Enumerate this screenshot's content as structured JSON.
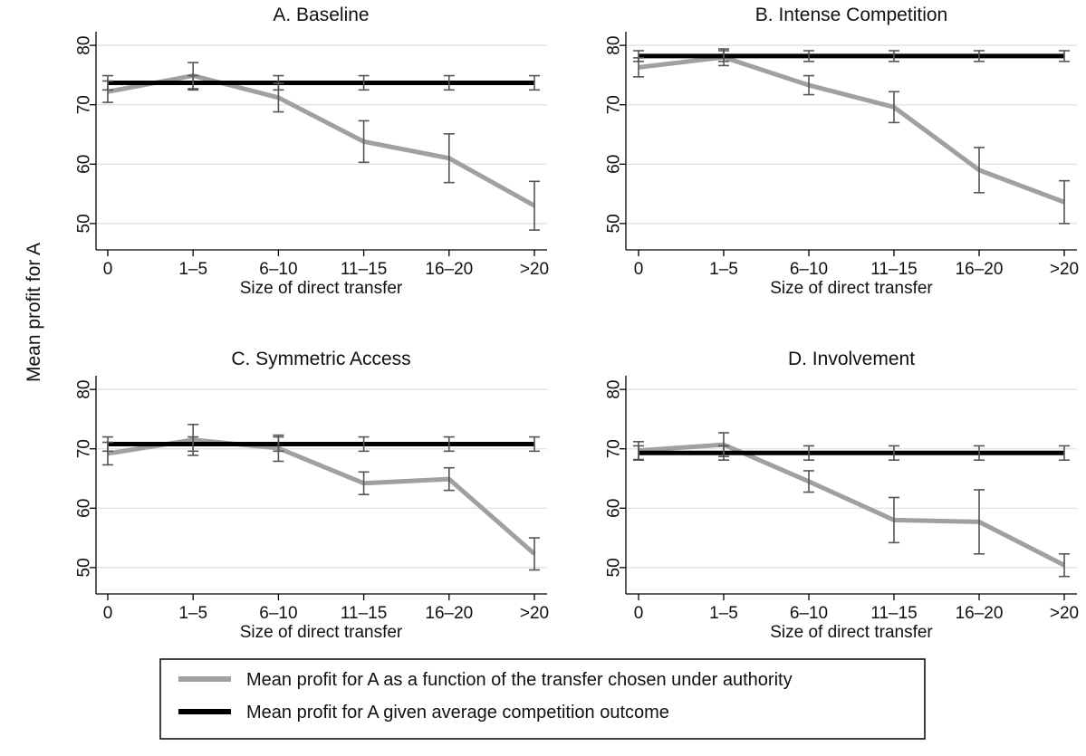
{
  "figure": {
    "ylabel": "Mean profit for A",
    "legend": [
      {
        "label": "Mean profit for A as a function of the transfer chosen under authority",
        "color": "#a0a0a0"
      },
      {
        "label": "Mean profit for A given average competition outcome",
        "color": "#000000"
      }
    ]
  },
  "chart_data": [
    {
      "type": "line",
      "title": "A. Baseline",
      "xlabel": "Size of direct transfer",
      "ylabel": "",
      "categories": [
        "0",
        "1–5",
        "6–10",
        "11–15",
        "16–20",
        ">20"
      ],
      "ylim": [
        48,
        82
      ],
      "yticks": [
        50,
        60,
        70,
        80
      ],
      "grid": true,
      "series": [
        {
          "name": "Mean profit for A as a function of the transfer chosen under authority",
          "color": "#a0a0a0",
          "values": [
            72.2,
            74.9,
            71.2,
            63.8,
            61.0,
            53.0
          ],
          "error_low": [
            70.4,
            72.7,
            68.8,
            60.3,
            56.9,
            48.9
          ],
          "error_high": [
            74.0,
            77.1,
            73.6,
            67.3,
            65.1,
            57.1
          ]
        },
        {
          "name": "Mean profit for A given average competition outcome",
          "color": "#000000",
          "values": [
            73.7,
            73.7,
            73.7,
            73.7,
            73.7,
            73.7
          ],
          "error_low": [
            72.5,
            72.5,
            72.5,
            72.5,
            72.5,
            72.5
          ],
          "error_high": [
            74.9,
            74.9,
            74.9,
            74.9,
            74.9,
            74.9
          ]
        }
      ]
    },
    {
      "type": "line",
      "title": "B. Intense Competition",
      "xlabel": "Size of direct transfer",
      "ylabel": "",
      "categories": [
        "0",
        "1–5",
        "6–10",
        "11–15",
        "16–20",
        ">20"
      ],
      "ylim": [
        48,
        82
      ],
      "yticks": [
        50,
        60,
        70,
        80
      ],
      "grid": true,
      "series": [
        {
          "name": "Mean profit for A as a function of the transfer chosen under authority",
          "color": "#a0a0a0",
          "values": [
            76.3,
            78.0,
            73.3,
            69.6,
            59.0,
            53.6
          ],
          "error_low": [
            74.7,
            76.6,
            71.7,
            67.0,
            55.2,
            50.0
          ],
          "error_high": [
            77.9,
            79.4,
            74.9,
            72.2,
            62.8,
            57.2
          ]
        },
        {
          "name": "Mean profit for A given average competition outcome",
          "color": "#000000",
          "values": [
            78.2,
            78.2,
            78.2,
            78.2,
            78.2,
            78.2
          ],
          "error_low": [
            77.3,
            77.3,
            77.3,
            77.3,
            77.3,
            77.3
          ],
          "error_high": [
            79.1,
            79.1,
            79.1,
            79.1,
            79.1,
            79.1
          ]
        }
      ]
    },
    {
      "type": "line",
      "title": "C. Symmetric Access",
      "xlabel": "Size of direct transfer",
      "ylabel": "",
      "categories": [
        "0",
        "1–5",
        "6–10",
        "11–15",
        "16–20",
        ">20"
      ],
      "ylim": [
        48,
        82
      ],
      "yticks": [
        50,
        60,
        70,
        80
      ],
      "grid": true,
      "series": [
        {
          "name": "Mean profit for A as a function of the transfer chosen under authority",
          "color": "#a0a0a0",
          "values": [
            69.2,
            71.5,
            70.1,
            64.2,
            64.9,
            52.3
          ],
          "error_low": [
            67.3,
            68.9,
            67.9,
            62.3,
            63.0,
            49.6
          ],
          "error_high": [
            71.1,
            74.1,
            72.3,
            66.1,
            66.8,
            55.0
          ]
        },
        {
          "name": "Mean profit for A given average competition outcome",
          "color": "#000000",
          "values": [
            70.8,
            70.8,
            70.8,
            70.8,
            70.8,
            70.8
          ],
          "error_low": [
            69.6,
            69.6,
            69.6,
            69.6,
            69.6,
            69.6
          ],
          "error_high": [
            72.0,
            72.0,
            72.0,
            72.0,
            72.0,
            72.0
          ]
        }
      ]
    },
    {
      "type": "line",
      "title": "D. Involvement",
      "xlabel": "Size of direct transfer",
      "ylabel": "",
      "categories": [
        "0",
        "1–5",
        "6–10",
        "11–15",
        "16–20",
        ">20"
      ],
      "ylim": [
        48,
        82
      ],
      "yticks": [
        50,
        60,
        70,
        80
      ],
      "grid": true,
      "series": [
        {
          "name": "Mean profit for A as a function of the transfer chosen under authority",
          "color": "#a0a0a0",
          "values": [
            69.7,
            70.7,
            64.5,
            58.0,
            57.7,
            50.4
          ],
          "error_low": [
            68.2,
            68.7,
            62.7,
            54.2,
            52.3,
            48.5
          ],
          "error_high": [
            71.2,
            72.7,
            66.3,
            61.8,
            63.1,
            52.3
          ]
        },
        {
          "name": "Mean profit for A given average competition outcome",
          "color": "#000000",
          "values": [
            69.3,
            69.3,
            69.3,
            69.3,
            69.3,
            69.3
          ],
          "error_low": [
            68.1,
            68.1,
            68.1,
            68.1,
            68.1,
            68.1
          ],
          "error_high": [
            70.5,
            70.5,
            70.5,
            70.5,
            70.5,
            70.5
          ]
        }
      ]
    }
  ]
}
